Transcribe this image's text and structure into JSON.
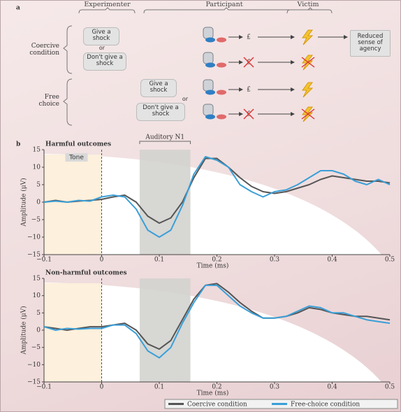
{
  "panel_a": {
    "label": "a",
    "roles": [
      "Experimenter",
      "Participant",
      "Victim"
    ],
    "conditions": [
      "Coercive condition",
      "Free choice"
    ],
    "instructions": [
      "Give a shock",
      "or",
      "Don't give a shock"
    ],
    "currency": "£",
    "outcome": "Reduced sense of agency"
  },
  "panel_b": {
    "label": "b"
  },
  "chart_data": [
    {
      "type": "line",
      "title": "Harmful outcomes",
      "xlabel": "Time (ms)",
      "ylabel": "Amplitude (μV)",
      "band": {
        "label": "Auditory N1",
        "range": [
          0.066,
          0.154
        ]
      },
      "onset": 0,
      "onset_label": "Tone",
      "legend": "bottom",
      "x": [
        -0.1,
        -0.08,
        -0.06,
        -0.04,
        -0.02,
        0,
        0.02,
        0.04,
        0.06,
        0.08,
        0.1,
        0.12,
        0.14,
        0.16,
        0.18,
        0.2,
        0.22,
        0.24,
        0.26,
        0.28,
        0.3,
        0.32,
        0.34,
        0.36,
        0.38,
        0.4,
        0.42,
        0.44,
        0.46,
        0.48,
        0.5
      ],
      "series": [
        {
          "name": "Coercive condition",
          "color": "#555555",
          "values": [
            0,
            0.5,
            0,
            0.3,
            0.5,
            0.8,
            1.5,
            2,
            0,
            -4,
            -6,
            -4.5,
            0,
            7,
            12.5,
            12.5,
            10,
            7,
            4.5,
            3,
            2.5,
            3,
            4,
            5,
            6.5,
            7.5,
            7,
            6.5,
            6,
            6,
            5.5
          ]
        },
        {
          "name": "Free-choice condition",
          "color": "#3a9fd8",
          "values": [
            0,
            0.3,
            0,
            0.5,
            0.3,
            1.5,
            2,
            1.5,
            -2,
            -8,
            -10,
            -8,
            -1,
            8,
            13,
            12,
            10,
            5,
            3,
            1.5,
            3,
            3.5,
            5,
            7,
            9,
            9,
            8,
            6,
            5,
            6.5,
            5
          ]
        }
      ],
      "xlim": [
        -0.1,
        0.5
      ],
      "ylim": [
        -15,
        15
      ],
      "xticks": [
        {
          "value": -0.1,
          "label": "−0.1"
        },
        0,
        0.1,
        0.2,
        0.3,
        0.4,
        0.5
      ],
      "yticks": [
        {
          "value": -15,
          "label": "−15"
        },
        {
          "value": -10,
          "label": "−10"
        },
        {
          "value": -5,
          "label": "−5"
        },
        0,
        5,
        10,
        15
      ]
    },
    {
      "type": "line",
      "title": "Non-harmful outcomes",
      "xlabel": "Time (ms)",
      "ylabel": "Amplitude (μV)",
      "band": {
        "range": [
          0.066,
          0.154
        ]
      },
      "onset": 0,
      "x": [
        -0.1,
        -0.08,
        -0.06,
        -0.04,
        -0.02,
        0,
        0.02,
        0.04,
        0.06,
        0.08,
        0.1,
        0.12,
        0.14,
        0.16,
        0.18,
        0.2,
        0.22,
        0.24,
        0.26,
        0.28,
        0.3,
        0.32,
        0.34,
        0.36,
        0.38,
        0.4,
        0.42,
        0.44,
        0.46,
        0.48,
        0.5
      ],
      "series": [
        {
          "color": "#555555",
          "values": [
            1,
            0.5,
            0,
            0.5,
            1,
            1,
            1.5,
            2,
            0,
            -4,
            -5.5,
            -3,
            3,
            9,
            13,
            13.5,
            11,
            8,
            5.5,
            3.5,
            3.5,
            4,
            5,
            6.5,
            6,
            5,
            4.5,
            4,
            4,
            3.5,
            3
          ]
        },
        {
          "color": "#3a9fd8",
          "values": [
            1,
            0,
            0.5,
            0.3,
            0.5,
            0.5,
            1.5,
            1.5,
            -1,
            -6,
            -8,
            -5,
            2,
            8,
            13,
            13,
            10,
            7,
            5,
            3.5,
            3.5,
            4,
            5.5,
            7,
            6.5,
            5,
            5,
            4,
            3,
            2.5,
            2
          ]
        }
      ],
      "xlim": [
        -0.1,
        0.5
      ],
      "ylim": [
        -15,
        15
      ],
      "xticks": [
        {
          "value": -0.1,
          "label": "−0.1"
        },
        0,
        0.1,
        0.2,
        0.3,
        0.4,
        0.5
      ],
      "yticks": [
        {
          "value": -15,
          "label": "−15"
        },
        {
          "value": -10,
          "label": "−10"
        },
        {
          "value": -5,
          "label": "−5"
        },
        0,
        5,
        10,
        15
      ]
    }
  ]
}
